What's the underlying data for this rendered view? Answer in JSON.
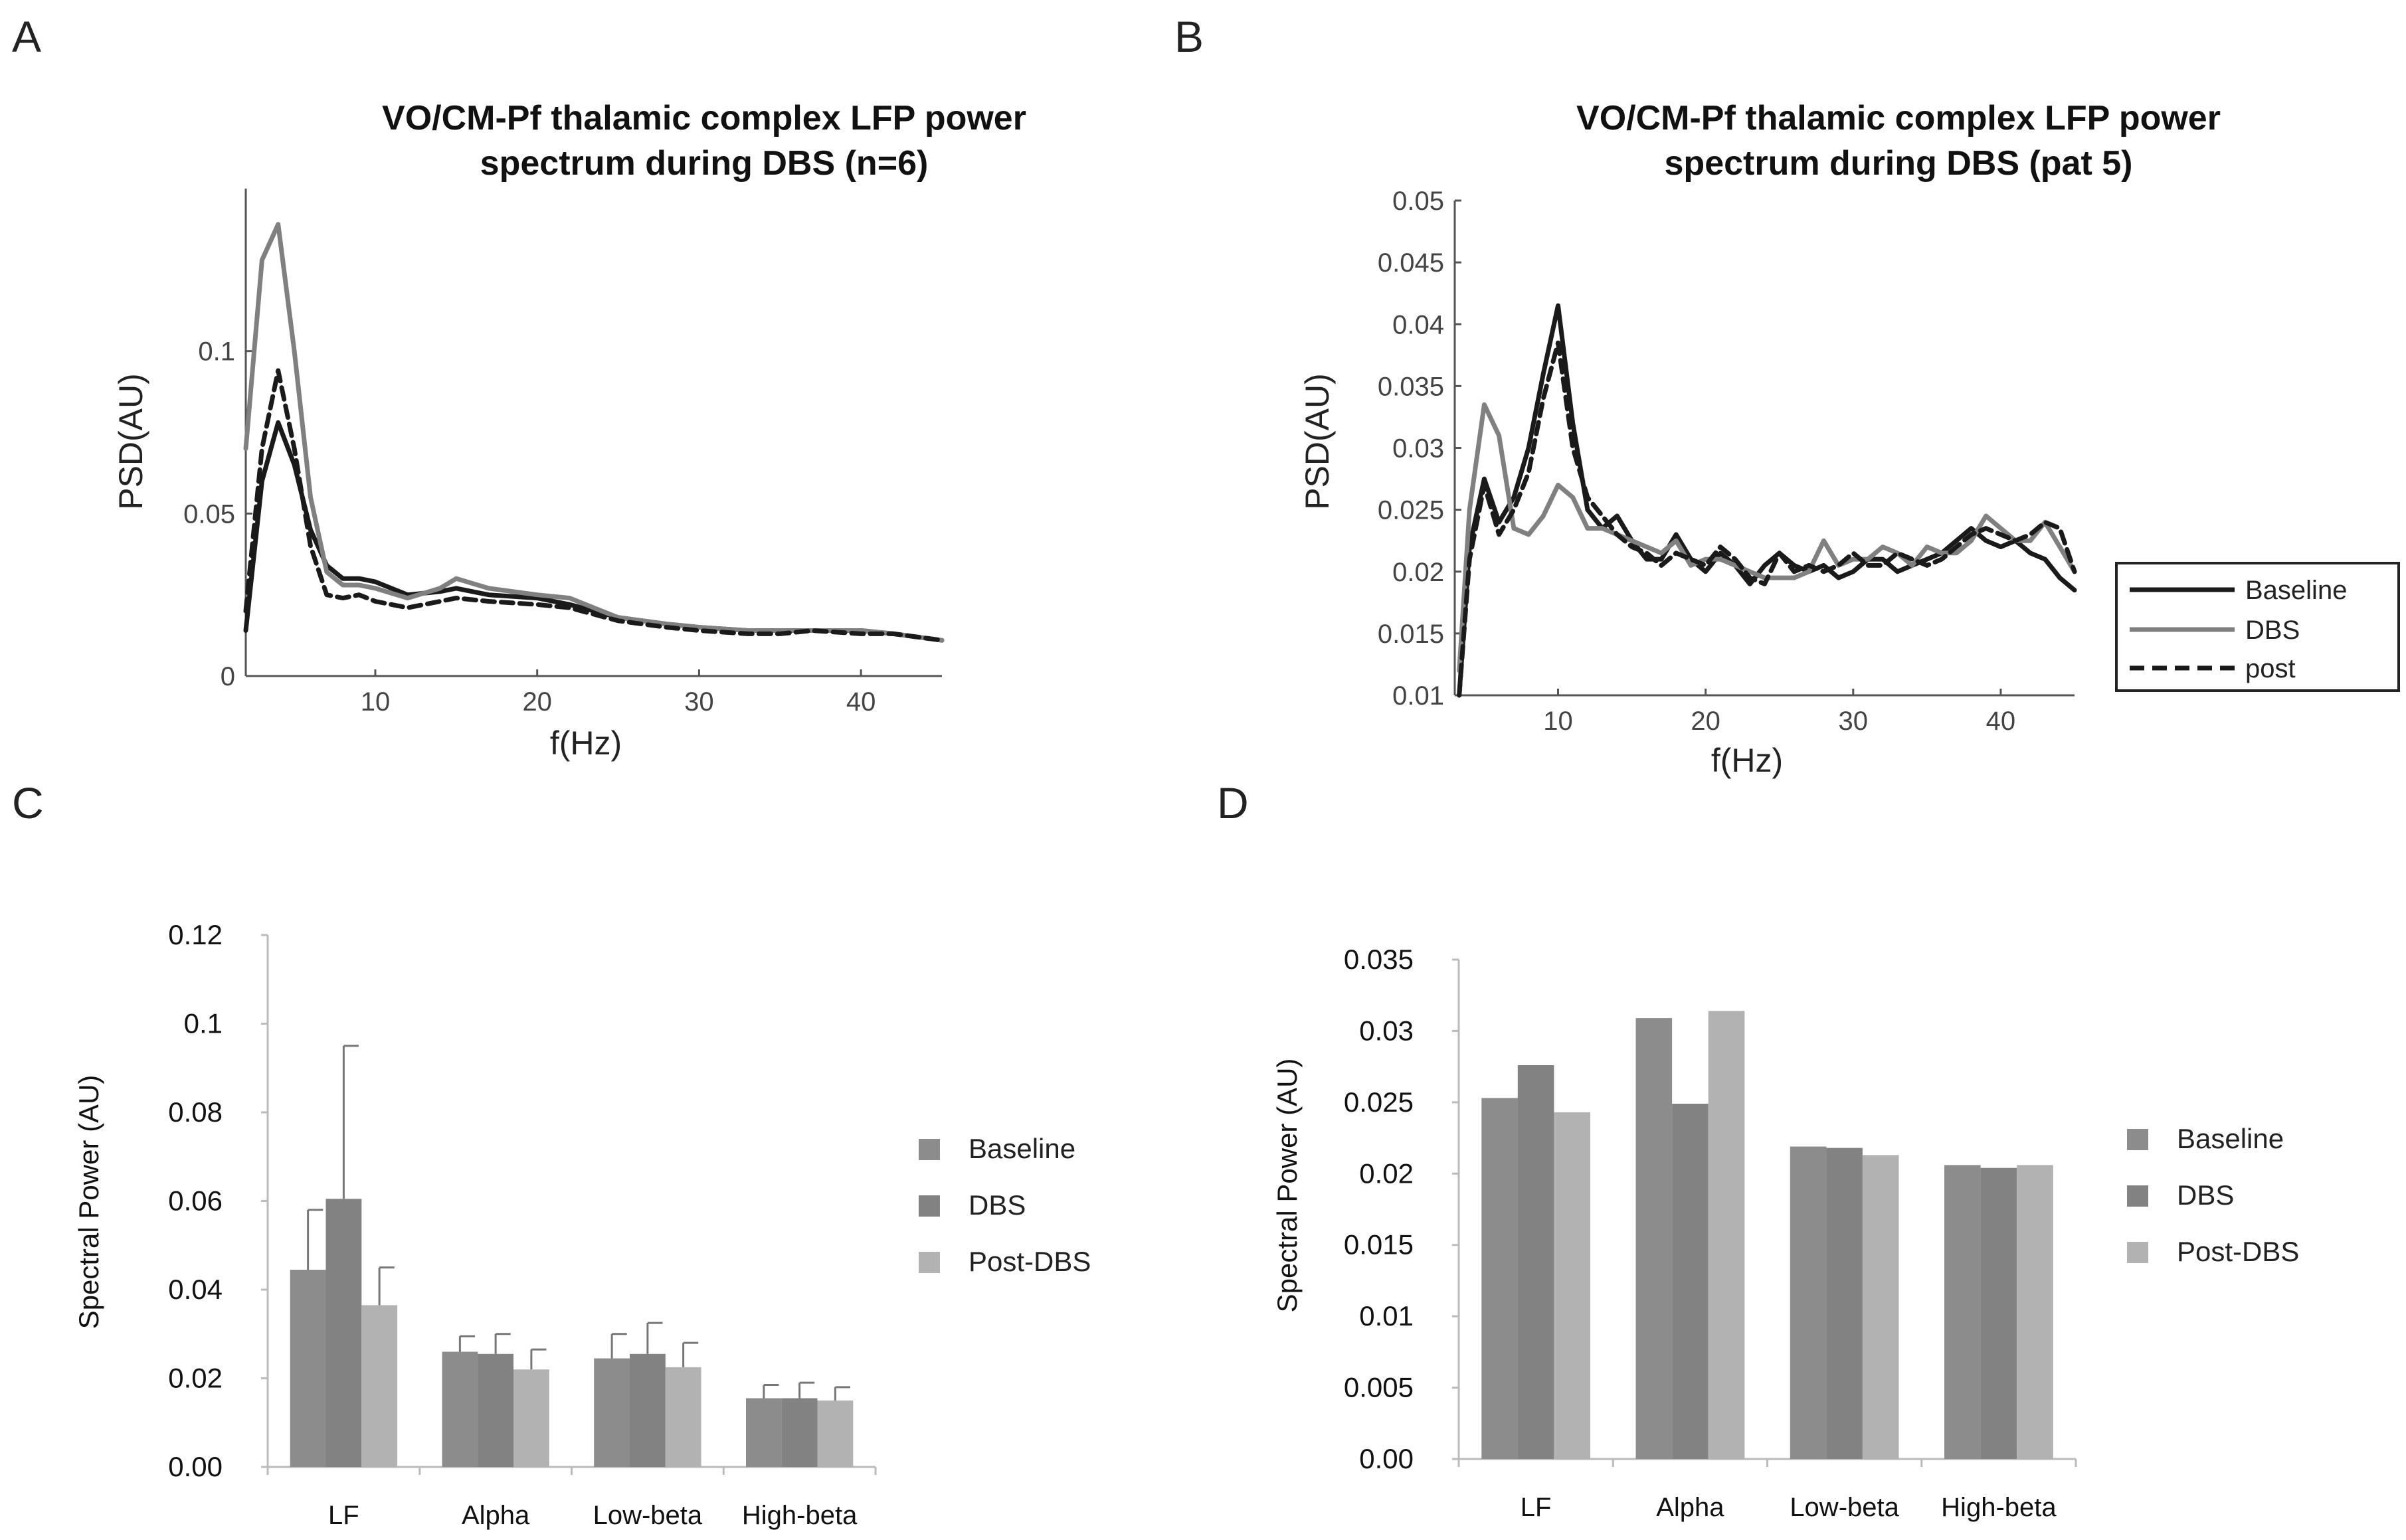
{
  "panels": {
    "A": "A",
    "B": "B",
    "C": "C",
    "D": "D"
  },
  "chart_data": [
    {
      "id": "A",
      "type": "line",
      "title_lines": [
        "VO/CM-Pf thalamic complex LFP power",
        "spectrum during DBS (n=6)"
      ],
      "xlabel": "f(Hz)",
      "ylabel": "PSD(AU)",
      "xlim": [
        2,
        45
      ],
      "ylim": [
        0,
        0.15
      ],
      "xticks": [
        10,
        20,
        30,
        40
      ],
      "xtick_labels": [
        "10",
        "20",
        "30",
        "40"
      ],
      "yticks": [
        0,
        0.05,
        0.1
      ],
      "ytick_labels": [
        "0",
        "0.05",
        "0.1"
      ],
      "series": [
        {
          "name": "Baseline",
          "color": "#1a1a1a",
          "dash": "",
          "x": [
            2,
            3,
            4,
            5,
            6,
            7,
            8,
            9,
            10,
            12,
            14,
            15,
            17,
            20,
            22,
            25,
            28,
            30,
            33,
            35,
            37,
            40,
            42,
            45
          ],
          "y": [
            0.014,
            0.06,
            0.078,
            0.065,
            0.045,
            0.034,
            0.03,
            0.03,
            0.029,
            0.025,
            0.026,
            0.027,
            0.025,
            0.024,
            0.022,
            0.018,
            0.016,
            0.015,
            0.014,
            0.014,
            0.014,
            0.014,
            0.013,
            0.011
          ]
        },
        {
          "name": "DBS",
          "color": "#808080",
          "dash": "",
          "x": [
            2,
            3,
            4,
            5,
            6,
            7,
            8,
            9,
            10,
            12,
            14,
            15,
            17,
            20,
            22,
            25,
            28,
            30,
            33,
            35,
            37,
            40,
            42,
            45
          ],
          "y": [
            0.07,
            0.128,
            0.139,
            0.1,
            0.055,
            0.032,
            0.028,
            0.028,
            0.027,
            0.024,
            0.027,
            0.03,
            0.027,
            0.025,
            0.024,
            0.018,
            0.016,
            0.015,
            0.014,
            0.014,
            0.014,
            0.014,
            0.013,
            0.011
          ]
        },
        {
          "name": "post",
          "color": "#1a1a1a",
          "dash": "18,10",
          "x": [
            2,
            3,
            4,
            5,
            6,
            7,
            8,
            9,
            10,
            12,
            14,
            15,
            17,
            20,
            22,
            25,
            28,
            30,
            33,
            35,
            37,
            40,
            42,
            45
          ],
          "y": [
            0.02,
            0.07,
            0.094,
            0.07,
            0.04,
            0.025,
            0.024,
            0.025,
            0.023,
            0.021,
            0.023,
            0.024,
            0.023,
            0.022,
            0.021,
            0.017,
            0.015,
            0.014,
            0.013,
            0.013,
            0.014,
            0.013,
            0.013,
            0.011
          ]
        }
      ]
    },
    {
      "id": "B",
      "type": "line",
      "title_lines": [
        "VO/CM-Pf thalamic complex LFP power",
        "spectrum during DBS (pat 5)"
      ],
      "xlabel": "f(Hz)",
      "ylabel": "PSD(AU)",
      "xlim": [
        3,
        45
      ],
      "ylim": [
        0.01,
        0.05
      ],
      "xticks": [
        10,
        20,
        30,
        40
      ],
      "xtick_labels": [
        "10",
        "20",
        "30",
        "40"
      ],
      "yticks": [
        0.01,
        0.015,
        0.02,
        0.025,
        0.03,
        0.035,
        0.04,
        0.045,
        0.05
      ],
      "ytick_labels": [
        "0.01",
        "0.015",
        "0.02",
        "0.025",
        "0.03",
        "0.035",
        "0.04",
        "0.045",
        "0.05"
      ],
      "legend": [
        "Baseline",
        "DBS",
        "post"
      ],
      "series": [
        {
          "name": "Baseline",
          "color": "#1a1a1a",
          "dash": "",
          "x": [
            3.3,
            4,
            5,
            6,
            7,
            8,
            9,
            10,
            11,
            12,
            13,
            14,
            15,
            16,
            17,
            18,
            19,
            20,
            21,
            22,
            23,
            24,
            25,
            26,
            27,
            28,
            29,
            30,
            31,
            32,
            33,
            34,
            35,
            36,
            37,
            38,
            39,
            40,
            41,
            42,
            43,
            44,
            45
          ],
          "y": [
            0.01,
            0.022,
            0.0275,
            0.024,
            0.026,
            0.03,
            0.036,
            0.0415,
            0.032,
            0.025,
            0.0235,
            0.0245,
            0.0225,
            0.021,
            0.021,
            0.023,
            0.021,
            0.02,
            0.0215,
            0.0205,
            0.019,
            0.0205,
            0.0215,
            0.0205,
            0.02,
            0.0205,
            0.0195,
            0.02,
            0.021,
            0.021,
            0.02,
            0.0205,
            0.021,
            0.0215,
            0.0225,
            0.0235,
            0.0225,
            0.022,
            0.0225,
            0.0215,
            0.021,
            0.0195,
            0.0185
          ]
        },
        {
          "name": "DBS",
          "color": "#808080",
          "dash": "",
          "x": [
            3.3,
            4,
            5,
            6,
            7,
            8,
            9,
            10,
            11,
            12,
            13,
            14,
            15,
            16,
            17,
            18,
            19,
            20,
            21,
            22,
            23,
            24,
            25,
            26,
            27,
            28,
            29,
            30,
            31,
            32,
            33,
            34,
            35,
            36,
            37,
            38,
            39,
            40,
            41,
            42,
            43,
            44,
            45
          ],
          "y": [
            0.012,
            0.025,
            0.0335,
            0.031,
            0.0235,
            0.023,
            0.0245,
            0.027,
            0.026,
            0.0235,
            0.0235,
            0.023,
            0.0225,
            0.022,
            0.0215,
            0.0225,
            0.0205,
            0.021,
            0.021,
            0.0205,
            0.02,
            0.0195,
            0.0195,
            0.0195,
            0.02,
            0.0225,
            0.0205,
            0.021,
            0.021,
            0.022,
            0.0215,
            0.0205,
            0.022,
            0.0215,
            0.0215,
            0.0225,
            0.0245,
            0.0235,
            0.0225,
            0.0225,
            0.024,
            0.022,
            0.02
          ]
        },
        {
          "name": "post",
          "color": "#1a1a1a",
          "dash": "18,10",
          "x": [
            3.3,
            4,
            5,
            6,
            7,
            8,
            9,
            10,
            11,
            12,
            13,
            14,
            15,
            16,
            17,
            18,
            19,
            20,
            21,
            22,
            23,
            24,
            25,
            26,
            27,
            28,
            29,
            30,
            31,
            32,
            33,
            34,
            35,
            36,
            37,
            38,
            39,
            40,
            41,
            42,
            43,
            44,
            45
          ],
          "y": [
            0.01,
            0.021,
            0.027,
            0.023,
            0.025,
            0.028,
            0.034,
            0.0385,
            0.03,
            0.026,
            0.0245,
            0.023,
            0.022,
            0.0215,
            0.0205,
            0.0215,
            0.021,
            0.0205,
            0.022,
            0.021,
            0.0195,
            0.019,
            0.0215,
            0.02,
            0.0205,
            0.02,
            0.0205,
            0.0215,
            0.0205,
            0.0205,
            0.0215,
            0.021,
            0.0205,
            0.021,
            0.022,
            0.023,
            0.0235,
            0.023,
            0.0225,
            0.023,
            0.024,
            0.0235,
            0.02
          ]
        }
      ]
    },
    {
      "id": "C",
      "type": "bar",
      "ylabel": "Spectral Power (AU)",
      "categories": [
        "LF",
        "Alpha",
        "Low-beta",
        "High-beta"
      ],
      "ylim": [
        0,
        0.12
      ],
      "yticks": [
        0,
        0.02,
        0.04,
        0.06,
        0.08,
        0.1,
        0.12
      ],
      "ytick_labels": [
        "0.00",
        "0.02",
        "0.04",
        "0.06",
        "0.08",
        "0.1",
        "0.12"
      ],
      "legend": [
        "Baseline",
        "DBS",
        "Post-DBS"
      ],
      "series": [
        {
          "name": "Baseline",
          "color": "#8c8c8c",
          "values": [
            0.0445,
            0.026,
            0.0245,
            0.0155
          ],
          "errors": [
            0.0135,
            0.0035,
            0.0055,
            0.003
          ]
        },
        {
          "name": "DBS",
          "color": "#828282",
          "values": [
            0.0605,
            0.0255,
            0.0255,
            0.0155
          ],
          "errors": [
            0.0345,
            0.0045,
            0.007,
            0.0035
          ]
        },
        {
          "name": "Post-DBS",
          "color": "#b2b2b2",
          "values": [
            0.0365,
            0.022,
            0.0225,
            0.015
          ],
          "errors": [
            0.0085,
            0.0045,
            0.0055,
            0.003
          ]
        }
      ]
    },
    {
      "id": "D",
      "type": "bar",
      "ylabel": "Spectral Power (AU)",
      "categories": [
        "LF",
        "Alpha",
        "Low-beta",
        "High-beta"
      ],
      "ylim": [
        0,
        0.035
      ],
      "yticks": [
        0,
        0.005,
        0.01,
        0.015,
        0.02,
        0.025,
        0.03,
        0.035
      ],
      "ytick_labels": [
        "0.00",
        "0.005",
        "0.01",
        "0.015",
        "0.02",
        "0.025",
        "0.03",
        "0.035"
      ],
      "legend": [
        "Baseline",
        "DBS",
        "Post-DBS"
      ],
      "series": [
        {
          "name": "Baseline",
          "color": "#8c8c8c",
          "values": [
            0.0253,
            0.0309,
            0.0219,
            0.0206
          ]
        },
        {
          "name": "DBS",
          "color": "#828282",
          "values": [
            0.0276,
            0.0249,
            0.0218,
            0.0204
          ]
        },
        {
          "name": "Post-DBS",
          "color": "#b2b2b2",
          "values": [
            0.0243,
            0.0314,
            0.0213,
            0.0206
          ]
        }
      ]
    }
  ]
}
